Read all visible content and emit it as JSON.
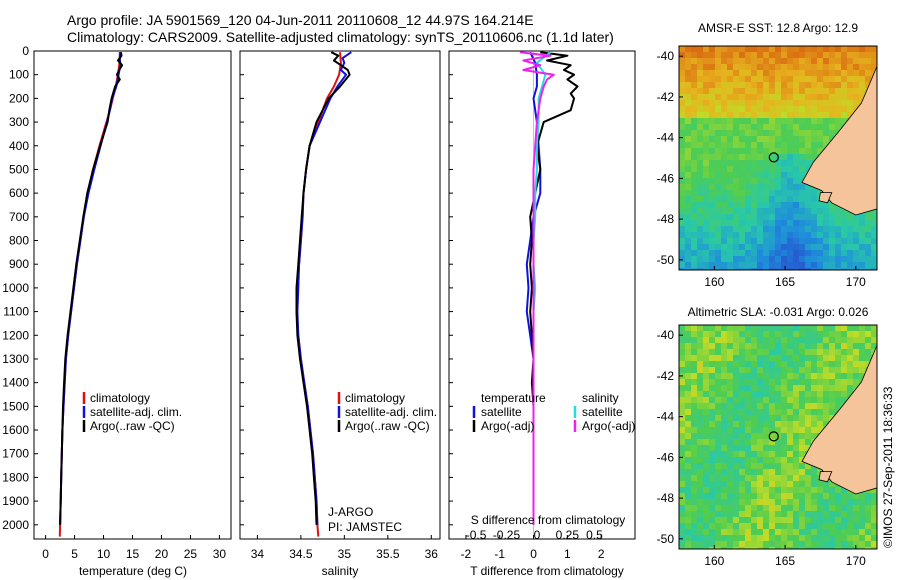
{
  "header": {
    "line1": "Argo profile: JA 5901569_120 04-Jun-2011 20110608_12 44.97S 164.214E",
    "line2": "Climatology: CARS2009. Satellite-adjusted climatology: synTS_20110606.nc (1.1d later)"
  },
  "colors": {
    "climatology": "#dd1111",
    "satellite": "#1111dd",
    "argo": "#000000",
    "sat_salinity": "#22dddd",
    "argo_salinity": "#ee22ee",
    "land": "#f5c49a"
  },
  "depth_axis": {
    "ticks": [
      "0",
      "100",
      "200",
      "300",
      "400",
      "500",
      "600",
      "700",
      "800",
      "900",
      "1000",
      "1100",
      "1200",
      "1300",
      "1400",
      "1500",
      "1600",
      "1700",
      "1800",
      "1900",
      "2000"
    ],
    "range": [
      0,
      2060
    ]
  },
  "chart_data": [
    {
      "type": "line",
      "id": "temperature",
      "xlabel": "temperature (deg C)",
      "xlim": [
        -2,
        32
      ],
      "xticks": [
        "0",
        "5",
        "10",
        "15",
        "20",
        "25",
        "30"
      ],
      "legend": [
        "climatology",
        "satellite-adj. clim.",
        "Argo(..raw -QC)"
      ],
      "series": [
        {
          "name": "climatology",
          "color_key": "climatology",
          "depth": [
            5,
            30,
            60,
            100,
            150,
            200,
            250,
            300,
            400,
            500,
            600,
            700,
            800,
            900,
            1000,
            1100,
            1200,
            1300,
            1400,
            1500,
            1600,
            1700,
            1800,
            1900,
            2000,
            2050
          ],
          "values": [
            12.9,
            12.8,
            12.7,
            12.5,
            12.1,
            11.6,
            11.1,
            10.5,
            9.3,
            8.2,
            7.3,
            6.6,
            6.0,
            5.4,
            4.9,
            4.4,
            3.9,
            3.5,
            3.3,
            3.1,
            2.9,
            2.8,
            2.7,
            2.6,
            2.5,
            2.45
          ]
        },
        {
          "name": "satellite-adj. clim.",
          "color_key": "satellite",
          "depth": [
            5,
            30,
            60,
            100,
            150,
            200,
            250,
            300,
            400,
            500,
            600,
            700,
            800,
            900,
            1000,
            1100,
            1200,
            1300,
            1400,
            1500,
            1600,
            1700,
            1800,
            1900,
            2000
          ],
          "values": [
            12.8,
            12.8,
            12.9,
            12.6,
            12.2,
            11.5,
            11.1,
            10.6,
            9.5,
            8.4,
            7.4,
            6.6,
            6.0,
            5.4,
            4.9,
            4.4,
            3.9,
            3.5,
            3.3,
            3.1,
            2.9,
            2.8,
            2.7,
            2.6,
            2.5
          ]
        },
        {
          "name": "Argo(..raw -QC)",
          "color_key": "argo",
          "depth": [
            5,
            20,
            40,
            60,
            80,
            100,
            120,
            150,
            200,
            250,
            300,
            400,
            500,
            600,
            700,
            800,
            900,
            1000,
            1100,
            1200,
            1300,
            1400,
            1500,
            1600,
            1700,
            1800,
            1900,
            2000
          ],
          "values": [
            13.0,
            13.1,
            12.5,
            13.2,
            12.7,
            12.3,
            12.8,
            12.0,
            11.4,
            11.0,
            10.7,
            9.4,
            8.2,
            7.2,
            6.5,
            5.9,
            5.3,
            4.8,
            4.3,
            3.8,
            3.4,
            3.2,
            3.0,
            2.9,
            2.8,
            2.7,
            2.6,
            2.5
          ]
        }
      ]
    },
    {
      "type": "line",
      "id": "salinity",
      "xlabel": "salinity",
      "xlim": [
        33.8,
        36.1
      ],
      "xticks": [
        "34",
        "34.5",
        "35",
        "35.5",
        "36"
      ],
      "legend": [
        "climatology",
        "satellite-adj. clim.",
        "Argo(..raw -QC)"
      ],
      "annotation": [
        "J-ARGO",
        "PI: JAMSTEC"
      ],
      "series": [
        {
          "name": "climatology",
          "color_key": "climatology",
          "depth": [
            5,
            50,
            100,
            150,
            200,
            300,
            400,
            500,
            600,
            700,
            800,
            900,
            1000,
            1100,
            1200,
            1300,
            1400,
            1500,
            1600,
            1700,
            1800,
            1900,
            2000,
            2050
          ],
          "values": [
            34.95,
            34.96,
            34.94,
            34.88,
            34.8,
            34.7,
            34.6,
            34.56,
            34.53,
            34.52,
            34.5,
            34.48,
            34.46,
            34.45,
            34.47,
            34.5,
            34.54,
            34.58,
            34.61,
            34.64,
            34.66,
            34.68,
            34.69,
            34.7
          ]
        },
        {
          "name": "satellite-adj. clim.",
          "color_key": "satellite",
          "depth": [
            5,
            30,
            50,
            80,
            100,
            150,
            200,
            300,
            400,
            500,
            600,
            700,
            800,
            900,
            1000,
            1100,
            1200,
            1300,
            1400,
            1500,
            1600,
            1700,
            1800,
            1900,
            2000
          ],
          "values": [
            35.08,
            34.98,
            35.0,
            34.96,
            35.02,
            34.92,
            34.84,
            34.72,
            34.6,
            34.56,
            34.53,
            34.52,
            34.5,
            34.48,
            34.47,
            34.46,
            34.47,
            34.5,
            34.54,
            34.58,
            34.61,
            34.64,
            34.66,
            34.68,
            34.69
          ]
        },
        {
          "name": "Argo(..raw -QC)",
          "color_key": "argo",
          "depth": [
            5,
            20,
            40,
            60,
            80,
            100,
            150,
            200,
            300,
            400,
            500,
            600,
            700,
            800,
            900,
            1000,
            1100,
            1200,
            1300,
            1400,
            1500,
            1600,
            1700,
            1800,
            1900,
            2000
          ],
          "values": [
            34.85,
            34.93,
            34.88,
            34.96,
            35.04,
            35.06,
            34.95,
            34.82,
            34.68,
            34.6,
            34.56,
            34.53,
            34.51,
            34.49,
            34.47,
            34.45,
            34.45,
            34.46,
            34.49,
            34.53,
            34.57,
            34.6,
            34.63,
            34.65,
            34.67,
            34.68
          ]
        }
      ]
    },
    {
      "type": "line",
      "id": "difference",
      "xlabel": "T difference from climatology",
      "xlabel2": "S difference from climatology",
      "xlim": [
        -2.5,
        3.0
      ],
      "xticks": [
        "-2",
        "-1",
        "0",
        "1",
        "2"
      ],
      "xticks_s": [
        "-0.5",
        "-0.25",
        "0",
        "0.25",
        "0.5"
      ],
      "xticks_s_pos": [
        -1.7,
        -0.8,
        0.1,
        1.0,
        1.8
      ],
      "legend_title_t": "temperature",
      "legend_title_s": "salinity",
      "legend_t": [
        "satellite",
        "Argo(-adj)"
      ],
      "legend_s": [
        "satellite",
        "Argo(-adj)"
      ],
      "series": [
        {
          "name": "T satellite",
          "color_key": "satellite",
          "depth": [
            5,
            50,
            100,
            150,
            200,
            300,
            400,
            500,
            600,
            700,
            800,
            900,
            1000,
            1100,
            1200,
            1300,
            1400,
            1500,
            1600,
            1700,
            1800,
            1900,
            2000
          ],
          "values": [
            -0.1,
            0.05,
            0.1,
            0.1,
            0.0,
            0.1,
            0.15,
            0.2,
            0.2,
            0.0,
            -0.1,
            -0.2,
            -0.15,
            -0.2,
            -0.1,
            0.0,
            0.0,
            0.0,
            0.0,
            0.0,
            0.0,
            0.0,
            0.0
          ]
        },
        {
          "name": "T Argo(-adj)",
          "color_key": "argo",
          "depth": [
            5,
            20,
            40,
            60,
            80,
            100,
            120,
            150,
            180,
            200,
            250,
            300,
            400,
            500,
            600,
            700,
            800,
            900,
            1000,
            1100,
            1200,
            1300,
            1400,
            1500,
            1600,
            1700,
            1800,
            1900,
            2000
          ],
          "values": [
            0.2,
            1.0,
            0.4,
            1.1,
            0.9,
            1.2,
            1.0,
            1.3,
            1.1,
            1.2,
            1.1,
            0.3,
            0.1,
            0.2,
            0.05,
            -0.1,
            -0.05,
            -0.1,
            -0.05,
            -0.1,
            -0.05,
            0.0,
            -0.05,
            0.0,
            0.0,
            0.0,
            0.0,
            0.0,
            0.0
          ]
        },
        {
          "name": "S satellite",
          "color_key": "sat_salinity",
          "depth": [
            5,
            50,
            100,
            150,
            200,
            300,
            400,
            500,
            600,
            700,
            800,
            900,
            1000,
            1100,
            1200,
            1300,
            1400,
            1500,
            1600,
            1700,
            1800,
            1900,
            2000
          ],
          "values": [
            0.5,
            0.1,
            0.35,
            0.25,
            0.15,
            0.15,
            0.1,
            0.1,
            0.05,
            0.05,
            0.0,
            0.0,
            0.05,
            0.0,
            0.0,
            0.0,
            0.0,
            0.0,
            0.0,
            0.0,
            0.0,
            0.0,
            0.0
          ]
        },
        {
          "name": "S Argo(-adj)",
          "color_key": "argo_salinity",
          "depth": [
            5,
            20,
            40,
            60,
            80,
            100,
            120,
            150,
            200,
            300,
            400,
            500,
            600,
            700,
            800,
            900,
            1000,
            1100,
            1200,
            1300,
            1400,
            1500,
            1600,
            1700,
            1800,
            1900,
            2000
          ],
          "values": [
            -0.4,
            0.5,
            -0.3,
            0.2,
            -0.3,
            0.6,
            0.4,
            0.3,
            0.2,
            0.1,
            0.05,
            0.0,
            0.0,
            0.0,
            0.0,
            0.0,
            0.0,
            0.0,
            0.0,
            0.0,
            0.0,
            0.0,
            0.0,
            0.0,
            0.0,
            0.0,
            0.0
          ]
        }
      ]
    },
    {
      "type": "heatmap",
      "id": "sst_map",
      "title": "AMSR-E SST: 12.8 Argo: 12.9",
      "xlim": [
        157.5,
        171.5
      ],
      "ylim": [
        -50.5,
        -39.5
      ],
      "xticks": [
        "160",
        "165",
        "170"
      ],
      "yticks": [
        "-40",
        "-42",
        "-44",
        "-46",
        "-48",
        "-50"
      ],
      "float_position": {
        "lon": 164.2,
        "lat": -44.97
      }
    },
    {
      "type": "heatmap",
      "id": "sla_map",
      "title": "Altimetric SLA: -0.031 Argo: 0.026",
      "xlim": [
        157.5,
        171.5
      ],
      "ylim": [
        -50.5,
        -39.5
      ],
      "xticks": [
        "160",
        "165",
        "170"
      ],
      "yticks": [
        "-40",
        "-42",
        "-44",
        "-46",
        "-48",
        "-50"
      ],
      "float_position": {
        "lon": 164.2,
        "lat": -44.97
      }
    }
  ],
  "credit": "©IMOS 27-Sep-2011 18:36:33"
}
